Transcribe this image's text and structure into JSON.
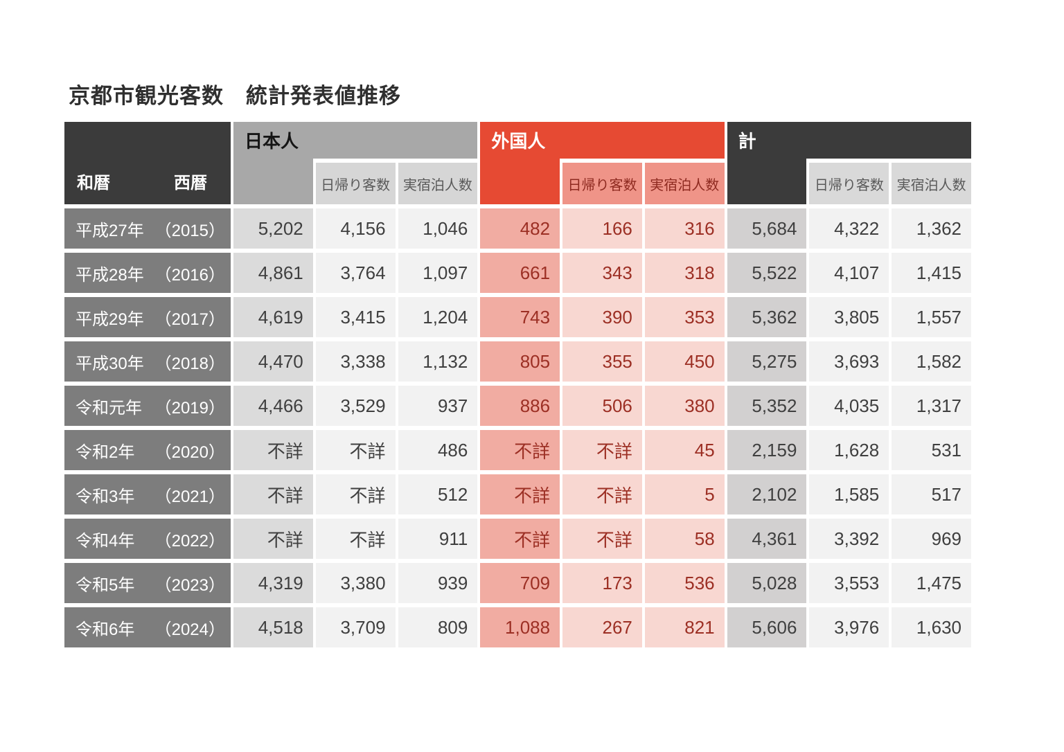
{
  "title": "京都市観光客数　統計発表値推移",
  "chart_data": {
    "type": "table",
    "title": "京都市観光客数　統計発表値推移",
    "corner_labels": {
      "wareki": "和暦",
      "seireki": "西暦"
    },
    "groups": [
      {
        "label": "日本人",
        "subcolumns": [
          "",
          "日帰り客数",
          "実宿泊人数"
        ]
      },
      {
        "label": "外国人",
        "subcolumns": [
          "",
          "日帰り客数",
          "実宿泊人数"
        ]
      },
      {
        "label": "計",
        "subcolumns": [
          "",
          "日帰り客数",
          "実宿泊人数"
        ]
      }
    ],
    "rows": [
      {
        "era": "平成27年",
        "year": "（2015）",
        "values": [
          "5,202",
          "4,156",
          "1,046",
          "482",
          "166",
          "316",
          "5,684",
          "4,322",
          "1,362"
        ]
      },
      {
        "era": "平成28年",
        "year": "（2016）",
        "values": [
          "4,861",
          "3,764",
          "1,097",
          "661",
          "343",
          "318",
          "5,522",
          "4,107",
          "1,415"
        ]
      },
      {
        "era": "平成29年",
        "year": "（2017）",
        "values": [
          "4,619",
          "3,415",
          "1,204",
          "743",
          "390",
          "353",
          "5,362",
          "3,805",
          "1,557"
        ]
      },
      {
        "era": "平成30年",
        "year": "（2018）",
        "values": [
          "4,470",
          "3,338",
          "1,132",
          "805",
          "355",
          "450",
          "5,275",
          "3,693",
          "1,582"
        ]
      },
      {
        "era": "令和元年",
        "year": "（2019）",
        "values": [
          "4,466",
          "3,529",
          "937",
          "886",
          "506",
          "380",
          "5,352",
          "4,035",
          "1,317"
        ]
      },
      {
        "era": "令和2年",
        "year": "（2020）",
        "values": [
          "不詳",
          "不詳",
          "486",
          "不詳",
          "不詳",
          "45",
          "2,159",
          "1,628",
          "531"
        ]
      },
      {
        "era": "令和3年",
        "year": "（2021）",
        "values": [
          "不詳",
          "不詳",
          "512",
          "不詳",
          "不詳",
          "5",
          "2,102",
          "1,585",
          "517"
        ]
      },
      {
        "era": "令和4年",
        "year": "（2022）",
        "values": [
          "不詳",
          "不詳",
          "911",
          "不詳",
          "不詳",
          "58",
          "4,361",
          "3,392",
          "969"
        ]
      },
      {
        "era": "令和5年",
        "year": "（2023）",
        "values": [
          "4,319",
          "3,380",
          "939",
          "709",
          "173",
          "536",
          "5,028",
          "3,553",
          "1,475"
        ]
      },
      {
        "era": "令和6年",
        "year": "（2024）",
        "values": [
          "4,518",
          "3,709",
          "809",
          "1,088",
          "267",
          "821",
          "5,606",
          "3,976",
          "1,630"
        ]
      }
    ],
    "colors": {
      "japanese_header": "#a8a8a8",
      "foreign_header": "#e64a33",
      "total_header": "#3b3b3b",
      "corner_header": "#3b3b3b",
      "row_label_bg": "#7d7d7d",
      "japanese_first_col": "#dbdbdb",
      "japanese_cells": "#f2f2f2",
      "foreign_subheader": "#ef9488",
      "foreign_first_col": "#f1aca2",
      "foreign_cells": "#f8d7d1",
      "total_first_col": "#d2d0d0",
      "total_cells": "#f2f2f2",
      "foreign_text": "#9c2f24",
      "number_text": "#3f3f3f"
    },
    "layout": {
      "legend": "none",
      "grid": "white gutters between cells"
    }
  }
}
